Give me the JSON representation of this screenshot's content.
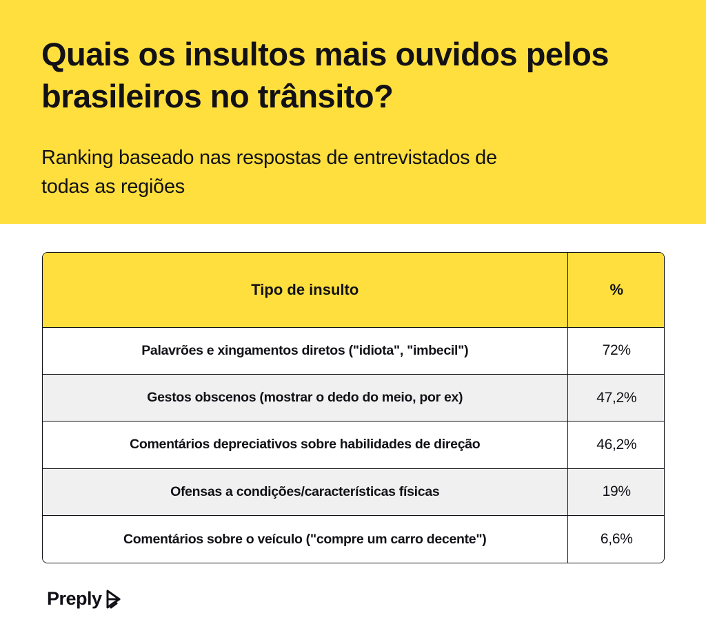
{
  "header": {
    "title": "Quais os insultos mais ouvidos pelos brasileiros no trânsito?",
    "subtitle": "Ranking baseado nas respostas de entrevistados de todas as regiões"
  },
  "table": {
    "columns": [
      "Tipo de insulto",
      "%"
    ],
    "rows": [
      {
        "type": "Palavrões e xingamentos diretos (\"idiota\", \"imbecil\")",
        "pct": "72%"
      },
      {
        "type": "Gestos obscenos  (mostrar o dedo do meio, por ex)",
        "pct": "47,2%"
      },
      {
        "type": "Comentários depreciativos sobre habilidades de direção",
        "pct": "46,2%"
      },
      {
        "type": "Ofensas a condições/características físicas",
        "pct": "19%"
      },
      {
        "type": "Comentários sobre o veículo (\"compre um carro decente\")",
        "pct": "6,6%"
      }
    ]
  },
  "brand": {
    "name": "Preply",
    "logo_icon": "preply-logo-icon"
  },
  "colors": {
    "accent": "#FFDF3D",
    "text": "#121117",
    "row_alt": "#F0F0F0"
  }
}
